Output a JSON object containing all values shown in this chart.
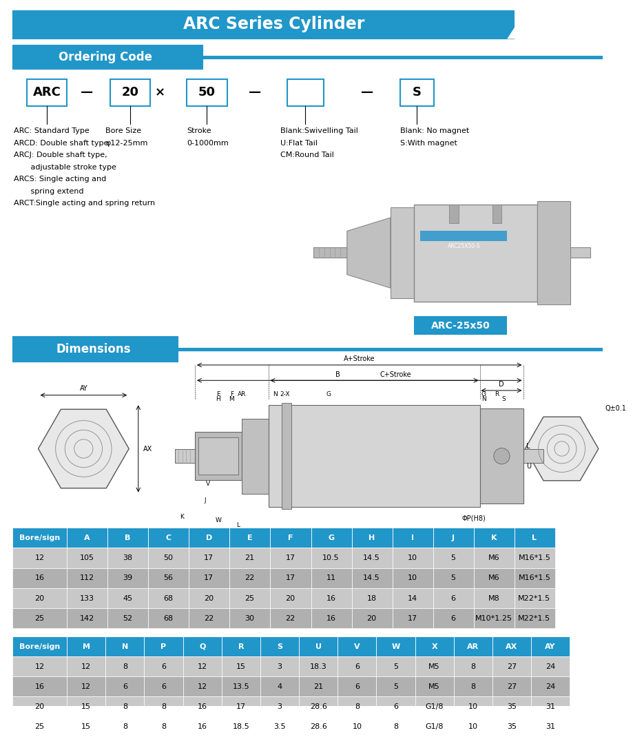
{
  "title": "ARC Series Cylinder",
  "title_bg": "#2196C9",
  "title_text_color": "#FFFFFF",
  "section1_title": "Ordering Code",
  "section2_title": "Dimensions",
  "section_bg": "#2196C9",
  "ordering_boxes": [
    "ARC",
    "20",
    "50",
    "",
    "S"
  ],
  "ordering_desc_col1": [
    "ARC: Standard Type",
    "ARCD: Double shaft type",
    "ARCJ: Double shaft type,",
    "       adjustable stroke type",
    "ARCS: Single acting and",
    "       spring extend",
    "ARCT:Single acting and spring return"
  ],
  "cylinder_label": "ARC-25x50",
  "table1_header": [
    "Bore/sign",
    "A",
    "B",
    "C",
    "D",
    "E",
    "F",
    "G",
    "H",
    "I",
    "J",
    "K",
    "L"
  ],
  "table1_data": [
    [
      "12",
      "105",
      "38",
      "50",
      "17",
      "21",
      "17",
      "10.5",
      "14.5",
      "10",
      "5",
      "M6",
      "M16*1.5"
    ],
    [
      "16",
      "112",
      "39",
      "56",
      "17",
      "22",
      "17",
      "11",
      "14.5",
      "10",
      "5",
      "M6",
      "M16*1.5"
    ],
    [
      "20",
      "133",
      "45",
      "68",
      "20",
      "25",
      "20",
      "16",
      "18",
      "14",
      "6",
      "M8",
      "M22*1.5"
    ],
    [
      "25",
      "142",
      "52",
      "68",
      "22",
      "30",
      "22",
      "16",
      "20",
      "17",
      "6",
      "M10*1.25",
      "M22*1.5"
    ]
  ],
  "table2_header": [
    "Bore/sign",
    "M",
    "N",
    "P",
    "Q",
    "R",
    "S",
    "U",
    "V",
    "W",
    "X",
    "AR",
    "AX",
    "AY"
  ],
  "table2_data": [
    [
      "12",
      "12",
      "8",
      "6",
      "12",
      "15",
      "3",
      "18.3",
      "6",
      "5",
      "M5",
      "8",
      "27",
      "24"
    ],
    [
      "16",
      "12",
      "6",
      "6",
      "12",
      "13.5",
      "4",
      "21",
      "6",
      "5",
      "M5",
      "8",
      "27",
      "24"
    ],
    [
      "20",
      "15",
      "8",
      "8",
      "16",
      "17",
      "3",
      "28.6",
      "8",
      "6",
      "G1/8",
      "10",
      "35",
      "31"
    ],
    [
      "25",
      "15",
      "8",
      "8",
      "16",
      "18.5",
      "3.5",
      "28.6",
      "10",
      "8",
      "G1/8",
      "10",
      "35",
      "31"
    ]
  ],
  "header_bg": "#2196C9",
  "header_text": "#FFFFFF",
  "row_even_bg": "#C8C8C8",
  "row_odd_bg": "#B0B0B0",
  "row_text": "#000000",
  "bg_color": "#FFFFFF",
  "border_color": "#2196C9",
  "stripe_color": "#FFFFFF",
  "dim_line_color": "#444444",
  "diag_fill": "#E0E0E0",
  "diag_edge": "#666666"
}
